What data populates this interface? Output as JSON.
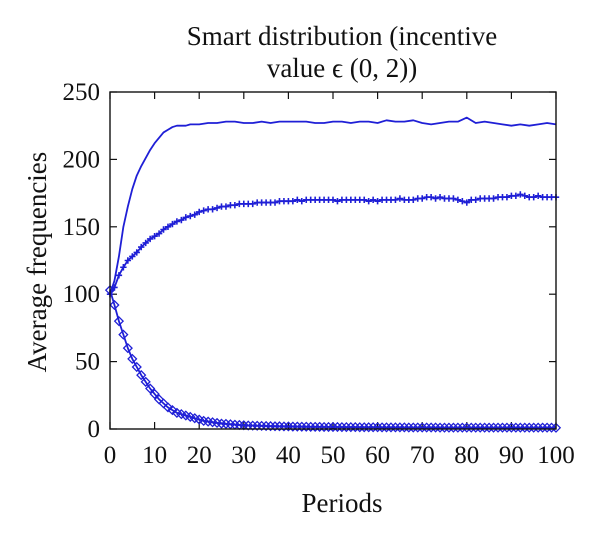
{
  "chart_data": {
    "type": "line",
    "title_lines": [
      "Smart distribution (incentive",
      "value ϵ (0, 2))"
    ],
    "xlabel": "Periods",
    "ylabel": "Average frequencies",
    "xlim": [
      0,
      100
    ],
    "ylim": [
      0,
      250
    ],
    "xticks": [
      0,
      10,
      20,
      30,
      40,
      50,
      60,
      70,
      80,
      90,
      100
    ],
    "yticks": [
      0,
      50,
      100,
      150,
      200,
      250
    ],
    "grid": false,
    "legend": "none",
    "line_color": "#1f1fd6",
    "series": [
      {
        "marker": "none",
        "x": [
          0,
          1,
          2,
          3,
          4,
          5,
          6,
          7,
          8,
          9,
          10,
          11,
          12,
          13,
          14,
          15,
          16,
          17,
          18,
          20,
          22,
          24,
          26,
          28,
          30,
          32,
          34,
          36,
          38,
          40,
          42,
          44,
          46,
          48,
          50,
          52,
          54,
          56,
          58,
          60,
          62,
          64,
          66,
          68,
          70,
          72,
          74,
          76,
          78,
          80,
          82,
          84,
          86,
          88,
          90,
          92,
          94,
          96,
          98,
          100
        ],
        "y": [
          100,
          110,
          128,
          150,
          165,
          178,
          188,
          195,
          201,
          207,
          212,
          216,
          220,
          222,
          224,
          225,
          225,
          225,
          226,
          226,
          227,
          227,
          228,
          228,
          227,
          227,
          228,
          227,
          228,
          228,
          228,
          228,
          227,
          227,
          228,
          228,
          227,
          228,
          228,
          227,
          229,
          228,
          228,
          229,
          227,
          226,
          227,
          228,
          228,
          231,
          227,
          228,
          227,
          226,
          225,
          226,
          225,
          226,
          227,
          226
        ]
      },
      {
        "marker": "plus",
        "x": [
          0,
          1,
          2,
          3,
          4,
          5,
          6,
          7,
          8,
          9,
          10,
          11,
          12,
          13,
          14,
          15,
          16,
          17,
          18,
          19,
          20,
          21,
          22,
          23,
          24,
          25,
          26,
          27,
          28,
          29,
          30,
          31,
          32,
          33,
          34,
          35,
          36,
          37,
          38,
          39,
          40,
          41,
          42,
          43,
          44,
          45,
          46,
          47,
          48,
          49,
          50,
          51,
          52,
          53,
          54,
          55,
          56,
          57,
          58,
          59,
          60,
          61,
          62,
          63,
          64,
          65,
          66,
          67,
          68,
          69,
          70,
          71,
          72,
          73,
          74,
          75,
          76,
          77,
          78,
          79,
          80,
          81,
          82,
          83,
          84,
          85,
          86,
          87,
          88,
          89,
          90,
          91,
          92,
          93,
          94,
          95,
          96,
          97,
          98,
          99,
          100
        ],
        "y": [
          100,
          105,
          114,
          120,
          125,
          128,
          131,
          135,
          138,
          141,
          143,
          145,
          148,
          150,
          152,
          154,
          155,
          157,
          158,
          159,
          161,
          162,
          163,
          163,
          164,
          165,
          165,
          166,
          166,
          167,
          167,
          167,
          167,
          168,
          168,
          168,
          168,
          168,
          169,
          169,
          169,
          169,
          170,
          169,
          170,
          170,
          170,
          170,
          170,
          170,
          170,
          169,
          170,
          170,
          170,
          170,
          170,
          170,
          169,
          170,
          169,
          170,
          170,
          170,
          170,
          171,
          170,
          170,
          170,
          171,
          171,
          172,
          172,
          171,
          172,
          171,
          171,
          171,
          170,
          169,
          168,
          170,
          170,
          171,
          171,
          171,
          171,
          172,
          172,
          172,
          173,
          173,
          174,
          173,
          172,
          172,
          173,
          172,
          172,
          172,
          172
        ]
      },
      {
        "marker": "diamond",
        "x": [
          0,
          1,
          2,
          3,
          4,
          5,
          6,
          7,
          8,
          9,
          10,
          11,
          12,
          13,
          14,
          15,
          16,
          17,
          18,
          19,
          20,
          21,
          22,
          23,
          24,
          25,
          26,
          27,
          28,
          29,
          30,
          31,
          32,
          33,
          34,
          35,
          36,
          37,
          38,
          39,
          40,
          41,
          42,
          43,
          44,
          45,
          46,
          47,
          48,
          49,
          50,
          51,
          52,
          53,
          54,
          55,
          56,
          57,
          58,
          59,
          60,
          61,
          62,
          63,
          64,
          65,
          66,
          67,
          68,
          69,
          70,
          71,
          72,
          73,
          74,
          75,
          76,
          77,
          78,
          79,
          80,
          81,
          82,
          83,
          84,
          85,
          86,
          87,
          88,
          89,
          90,
          91,
          92,
          93,
          94,
          95,
          96,
          97,
          98,
          99,
          100
        ],
        "y": [
          103,
          92,
          80,
          70,
          60,
          52,
          46,
          40,
          35,
          30,
          26,
          22,
          19,
          16,
          14,
          12,
          11,
          10,
          9,
          8,
          7,
          6,
          5.5,
          5,
          4.5,
          4,
          3.8,
          3.5,
          3.2,
          3,
          2.8,
          2.6,
          2.5,
          2.4,
          2.3,
          2.2,
          2.1,
          2,
          2,
          1.9,
          1.9,
          1.8,
          1.8,
          1.7,
          1.7,
          1.6,
          1.6,
          1.6,
          1.5,
          1.5,
          1.5,
          1.5,
          1.4,
          1.4,
          1.4,
          1.4,
          1.3,
          1.3,
          1.3,
          1.3,
          1.3,
          1.2,
          1.2,
          1.2,
          1.2,
          1.2,
          1.2,
          1.1,
          1.1,
          1.1,
          1.1,
          1.1,
          1.1,
          1.1,
          1,
          1,
          1,
          1,
          1,
          1,
          1,
          1,
          1,
          1,
          1,
          1,
          1,
          1,
          1,
          1,
          1,
          1,
          1,
          1,
          1,
          1,
          1,
          1,
          1,
          1,
          0.9
        ]
      }
    ]
  }
}
